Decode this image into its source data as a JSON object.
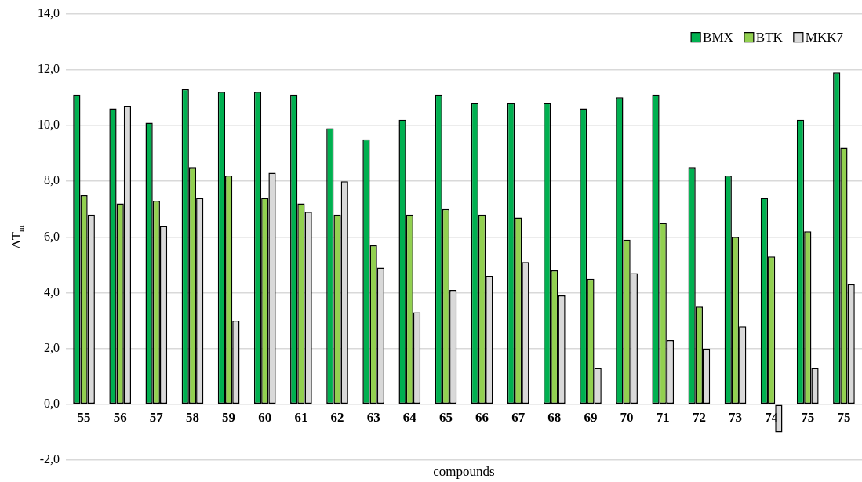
{
  "chart_data": {
    "type": "bar",
    "xlabel": "compounds",
    "ylabel": "ΔT$_{m}$",
    "categories": [
      "55",
      "56",
      "57",
      "58",
      "59",
      "60",
      "61",
      "62",
      "63",
      "64",
      "65",
      "66",
      "67",
      "68",
      "69",
      "70",
      "71",
      "72",
      "73",
      "74",
      "75",
      "75"
    ],
    "series": [
      {
        "name": "BMX",
        "color": "#00b050",
        "values": [
          11.1,
          10.6,
          10.1,
          11.3,
          11.2,
          11.2,
          11.1,
          9.9,
          9.5,
          10.2,
          11.1,
          10.8,
          10.8,
          10.8,
          10.6,
          11.0,
          11.1,
          8.5,
          8.2,
          7.4,
          10.2,
          11.9
        ]
      },
      {
        "name": "BTK",
        "color": "#92d050",
        "values": [
          7.5,
          7.2,
          7.3,
          8.5,
          8.2,
          7.4,
          7.2,
          6.8,
          5.7,
          6.8,
          7.0,
          6.8,
          6.7,
          4.8,
          4.5,
          5.9,
          6.5,
          3.5,
          6.0,
          5.3,
          6.2,
          9.2
        ]
      },
      {
        "name": "MKK7",
        "color": "#d9d9d9",
        "values": [
          6.8,
          10.7,
          6.4,
          7.4,
          3.0,
          8.3,
          6.9,
          8.0,
          4.9,
          3.3,
          4.1,
          4.6,
          5.1,
          3.9,
          1.3,
          4.7,
          2.3,
          2.0,
          2.8,
          -1.0,
          1.3,
          4.3
        ]
      }
    ],
    "ylim": [
      -2,
      14
    ],
    "yticks": [
      {
        "value": -2,
        "label": "-2,0"
      },
      {
        "value": 0,
        "label": "0,0"
      },
      {
        "value": 2,
        "label": "2,0"
      },
      {
        "value": 4,
        "label": "4,0"
      },
      {
        "value": 6,
        "label": "6,0"
      },
      {
        "value": 8,
        "label": "8,0"
      },
      {
        "value": 10,
        "label": "10,0"
      },
      {
        "value": 12,
        "label": "12,0"
      },
      {
        "value": 14,
        "label": "14,0"
      }
    ],
    "grid": "y",
    "legend": "top right"
  }
}
